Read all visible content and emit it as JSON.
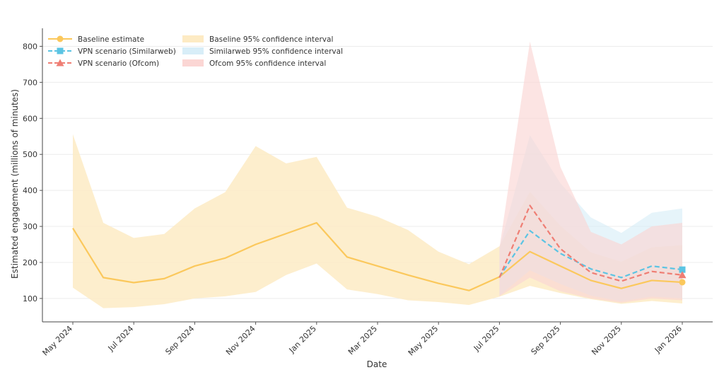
{
  "chart_data": {
    "type": "line",
    "xlabel": "Date",
    "ylabel": "Estimated engagement (millions of minutes)",
    "ylim": [
      35,
      850
    ],
    "grid": "horizontal",
    "legend_position": "top-left",
    "yticks": [
      100,
      200,
      300,
      400,
      500,
      600,
      700,
      800
    ],
    "x_tick_labels": [
      "May 2024",
      "Jul 2024",
      "Sep 2024",
      "Nov 2024",
      "Jan 2025",
      "Mar 2025",
      "May 2025",
      "Jul 2025",
      "Sep 2025",
      "Nov 2025",
      "Jan 2026"
    ],
    "x_tick_index": [
      0,
      2,
      4,
      6,
      8,
      10,
      12,
      14,
      16,
      18,
      20
    ],
    "months": [
      "2024-05",
      "2024-06",
      "2024-07",
      "2024-08",
      "2024-09",
      "2024-10",
      "2024-11",
      "2024-12",
      "2025-01",
      "2025-02",
      "2025-03",
      "2025-04",
      "2025-05",
      "2025-06",
      "2025-07",
      "2025-08",
      "2025-09",
      "2025-10",
      "2025-11",
      "2025-12",
      "2026-01"
    ],
    "series": [
      {
        "name": "Baseline estimate",
        "color": "#fbc85c",
        "style": "solid",
        "marker": "circle",
        "start_index": 0,
        "values": [
          295,
          158,
          144,
          155,
          190,
          212,
          250,
          280,
          310,
          215,
          190,
          165,
          142,
          122,
          160,
          230,
          190,
          150,
          128,
          150,
          145
        ],
        "ci_name": "Baseline 95% confidence interval",
        "ci_color": "#fdebc4",
        "ci_lower": [
          130,
          73,
          76,
          84,
          100,
          106,
          118,
          165,
          197,
          125,
          112,
          95,
          90,
          82,
          105,
          135,
          115,
          98,
          85,
          93,
          86
        ],
        "ci_upper": [
          556,
          310,
          268,
          279,
          350,
          395,
          523,
          475,
          493,
          352,
          327,
          290,
          230,
          195,
          245,
          396,
          302,
          228,
          202,
          242,
          248
        ]
      },
      {
        "name": "VPN scenario (Similarweb)",
        "color": "#5bc4e3",
        "style": "dashed",
        "marker": "square",
        "start_index": 14,
        "values": [
          160,
          288,
          225,
          182,
          158,
          190,
          180
        ],
        "ci_name": "Similarweb 95% confidence interval",
        "ci_color": "#d8eef8",
        "ci_lower": [
          108,
          178,
          140,
          108,
          92,
          105,
          100
        ],
        "ci_upper": [
          240,
          553,
          420,
          325,
          282,
          338,
          350
        ]
      },
      {
        "name": "VPN scenario (Ofcom)",
        "color": "#ef7e74",
        "style": "dashed",
        "marker": "triangle",
        "start_index": 14,
        "values": [
          158,
          358,
          238,
          172,
          148,
          175,
          165
        ],
        "ci_name": "Ofcom 95% confidence interval",
        "ci_color": "#fbd6d4",
        "ci_lower": [
          106,
          158,
          120,
          100,
          88,
          100,
          95
        ],
        "ci_upper": [
          240,
          813,
          465,
          285,
          250,
          300,
          310
        ]
      }
    ]
  }
}
